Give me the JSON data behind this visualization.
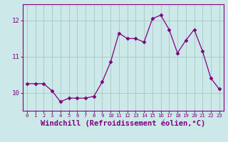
{
  "x": [
    0,
    1,
    2,
    3,
    4,
    5,
    6,
    7,
    8,
    9,
    10,
    11,
    12,
    13,
    14,
    15,
    16,
    17,
    18,
    19,
    20,
    21,
    22,
    23
  ],
  "y": [
    10.25,
    10.25,
    10.25,
    10.05,
    9.75,
    9.85,
    9.85,
    9.85,
    9.9,
    10.3,
    10.85,
    11.65,
    11.5,
    11.5,
    11.4,
    12.05,
    12.15,
    11.75,
    11.1,
    11.45,
    11.75,
    11.15,
    10.4,
    10.1
  ],
  "line_color": "#800080",
  "marker": "D",
  "marker_size": 2.5,
  "bg_color": "#cce8e8",
  "grid_color": "#aacccc",
  "xlabel": "Windchill (Refroidissement éolien,°C)",
  "xlabel_color": "#800080",
  "yticks": [
    10,
    11,
    12
  ],
  "xticks": [
    0,
    1,
    2,
    3,
    4,
    5,
    6,
    7,
    8,
    9,
    10,
    11,
    12,
    13,
    14,
    15,
    16,
    17,
    18,
    19,
    20,
    21,
    22,
    23
  ],
  "ylim": [
    9.5,
    12.45
  ],
  "xlim": [
    -0.5,
    23.5
  ],
  "tick_color": "#800080",
  "axis_color": "#800080",
  "xlabel_fontsize": 7.5,
  "xtick_fontsize": 5.2,
  "ytick_fontsize": 6.5
}
